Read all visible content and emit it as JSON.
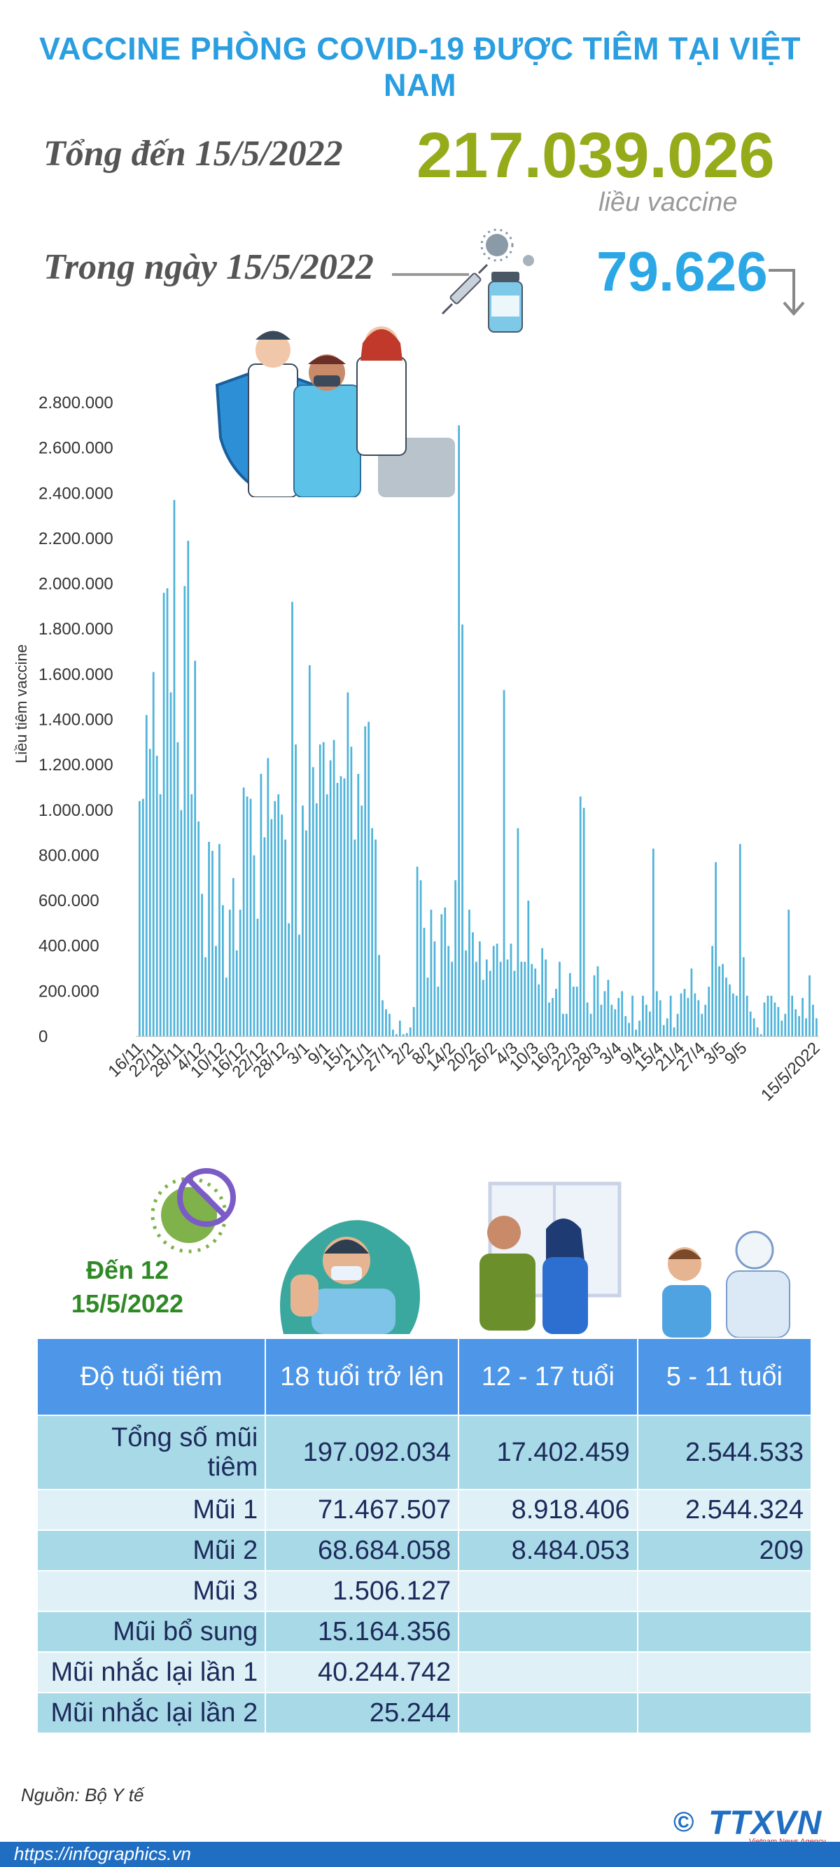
{
  "header": {
    "title": "VACCINE PHÒNG COVID-19 ĐƯỢC TIÊM TẠI VIỆT NAM",
    "total_label": "Tổng đến 15/5/2022",
    "total_value": "217.039.026",
    "total_unit": "liều vaccine",
    "day_label": "Trong ngày 15/5/2022",
    "day_value": "79.626"
  },
  "colors": {
    "title": "#2a9ee0",
    "total": "#95ab1a",
    "day": "#2ba7e6",
    "bar": "#4fb3d9",
    "table_header": "#4d96e8",
    "table_dark": "#a8d9e6",
    "table_light": "#dff0f7",
    "section_label": "#2f8a25"
  },
  "icons": [
    "syringe-icon",
    "vaccine-vial-icon",
    "virus-icon",
    "down-arrow-icon",
    "shield-vaccine-icon",
    "no-virus-icon"
  ],
  "chart_data": {
    "type": "bar",
    "ylabel": "Liều tiêm vaccine",
    "ylim": [
      0,
      2800000
    ],
    "yticks": [
      "0",
      "200.000",
      "400.000",
      "600.000",
      "800.000",
      "1.000.000",
      "1.200.000",
      "1.400.000",
      "1.600.000",
      "1.800.000",
      "2.000.000",
      "2.200.000",
      "2.400.000",
      "2.600.000",
      "2.800.000"
    ],
    "x_start": "16/11/2021",
    "x_end": "15/5/2022",
    "xticks": [
      "16/11",
      "22/11",
      "28/11",
      "4/12",
      "10/12",
      "16/12",
      "22/12",
      "28/12",
      "3/1",
      "9/1",
      "15/1",
      "21/1",
      "27/1",
      "2/2",
      "8/2",
      "14/2",
      "20/2",
      "26/2",
      "4/3",
      "10/3",
      "16/3",
      "22/3",
      "28/3",
      "3/4",
      "9/4",
      "15/4",
      "21/4",
      "27/4",
      "3/5",
      "9/5",
      "15/5/2022"
    ],
    "values": [
      1040000,
      1050000,
      1420000,
      1270000,
      1610000,
      1240000,
      1070000,
      1960000,
      1980000,
      1520000,
      2370000,
      1300000,
      1000000,
      1990000,
      2190000,
      1070000,
      1660000,
      950000,
      630000,
      350000,
      860000,
      820000,
      400000,
      850000,
      580000,
      260000,
      560000,
      700000,
      380000,
      560000,
      1100000,
      1060000,
      1050000,
      800000,
      520000,
      1160000,
      880000,
      1230000,
      960000,
      1040000,
      1070000,
      980000,
      870000,
      500000,
      1920000,
      1290000,
      450000,
      1020000,
      910000,
      1640000,
      1190000,
      1030000,
      1290000,
      1300000,
      1070000,
      1220000,
      1310000,
      1120000,
      1150000,
      1140000,
      1520000,
      1280000,
      870000,
      1160000,
      1020000,
      1370000,
      1390000,
      920000,
      870000,
      360000,
      160000,
      120000,
      100000,
      30000,
      10000,
      70000,
      10000,
      15000,
      40000,
      130000,
      750000,
      690000,
      480000,
      260000,
      560000,
      420000,
      220000,
      540000,
      570000,
      400000,
      330000,
      690000,
      2700000,
      1820000,
      380000,
      560000,
      460000,
      330000,
      420000,
      250000,
      340000,
      290000,
      400000,
      410000,
      330000,
      1530000,
      340000,
      410000,
      290000,
      920000,
      330000,
      330000,
      600000,
      320000,
      300000,
      230000,
      390000,
      340000,
      150000,
      170000,
      210000,
      330000,
      100000,
      100000,
      280000,
      220000,
      220000,
      1060000,
      1010000,
      150000,
      100000,
      270000,
      310000,
      140000,
      200000,
      250000,
      140000,
      120000,
      170000,
      200000,
      90000,
      60000,
      180000,
      30000,
      70000,
      180000,
      140000,
      110000,
      830000,
      200000,
      160000,
      50000,
      80000,
      180000,
      40000,
      100000,
      190000,
      210000,
      170000,
      300000,
      190000,
      160000,
      100000,
      140000,
      220000,
      400000,
      770000,
      310000,
      320000,
      260000,
      230000,
      190000,
      180000,
      850000,
      350000,
      180000,
      110000,
      80000,
      40000,
      10000,
      150000,
      180000,
      180000,
      150000,
      130000,
      70000,
      100000,
      560000,
      180000,
      120000,
      90000,
      170000,
      80000,
      270000,
      140000,
      80000
    ]
  },
  "section2": {
    "label_line1": "Đến 12",
    "label_line2": "15/5/2022"
  },
  "table": {
    "headers": [
      "Độ tuổi tiêm",
      "18 tuổi trở lên",
      "12 - 17 tuổi",
      "5 - 11 tuổi"
    ],
    "rows": [
      {
        "label": "Tổng số mũi tiêm",
        "c1": "197.092.034",
        "c2": "17.402.459",
        "c3": "2.544.533"
      },
      {
        "label": "Mũi 1",
        "c1": "71.467.507",
        "c2": "8.918.406",
        "c3": "2.544.324"
      },
      {
        "label": "Mũi 2",
        "c1": "68.684.058",
        "c2": "8.484.053",
        "c3": "209"
      },
      {
        "label": "Mũi 3",
        "c1": "1.506.127",
        "c2": "",
        "c3": ""
      },
      {
        "label": "Mũi bổ sung",
        "c1": "15.164.356",
        "c2": "",
        "c3": ""
      },
      {
        "label": "Mũi nhắc lại lần 1",
        "c1": "40.244.742",
        "c2": "",
        "c3": ""
      },
      {
        "label": "Mũi nhắc lại lần 2",
        "c1": "25.244",
        "c2": "",
        "c3": ""
      }
    ]
  },
  "footer": {
    "source": "Nguồn: Bộ Y tế",
    "url": "https://infographics.vn",
    "logo_copyright": "©",
    "logo": "TTXVN",
    "logo_sub": "Vietnam News Agency"
  }
}
